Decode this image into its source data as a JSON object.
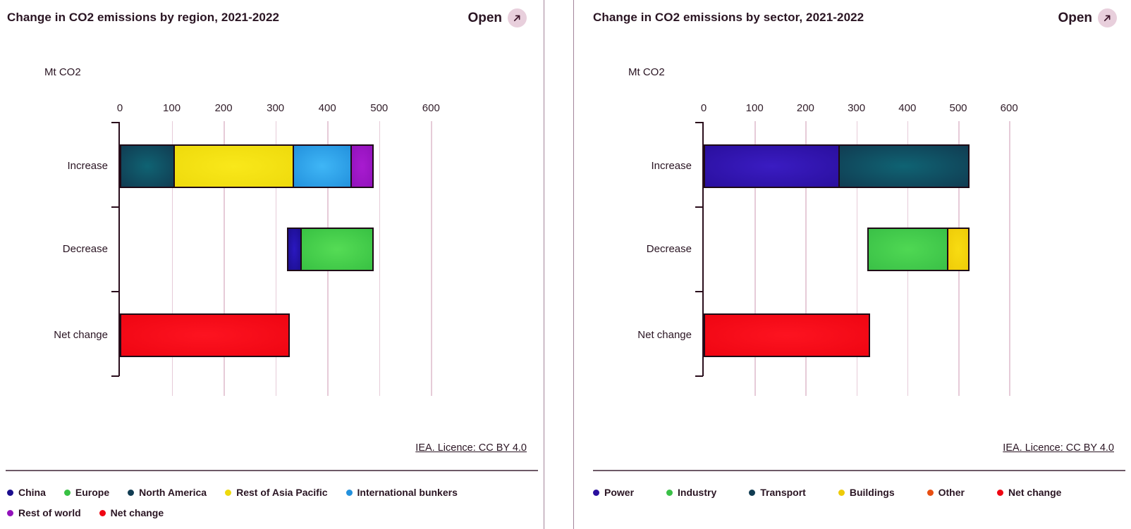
{
  "panels": [
    {
      "title": "Change in CO2 emissions by region, 2021-2022",
      "open_label": "Open",
      "unit_label": "Mt CO2",
      "licence": "IEA. Licence: CC BY 4.0"
    },
    {
      "title": "Change in CO2 emissions by sector, 2021-2022",
      "open_label": "Open",
      "unit_label": "Mt CO2",
      "licence": "IEA. Licence: CC BY 4.0"
    }
  ],
  "chart_data": [
    {
      "type": "bar",
      "orientation": "horizontal",
      "title": "Change in CO2 emissions by region, 2021-2022",
      "xlabel": "Mt CO2",
      "xlim": [
        0,
        600
      ],
      "x_ticks": [
        0,
        100,
        200,
        300,
        400,
        500,
        600
      ],
      "grid": true,
      "legend_position": "bottom",
      "categories": [
        "Increase",
        "Decrease",
        "Net change"
      ],
      "bar_offsets_mt": [
        0,
        322,
        0
      ],
      "series": [
        {
          "name": "China",
          "color": "#2a18c0",
          "color2": "#1c0e8e",
          "values": [
            0,
            23,
            0
          ]
        },
        {
          "name": "Europe",
          "color": "#55dc55",
          "color2": "#38c143",
          "values": [
            0,
            139,
            0
          ]
        },
        {
          "name": "North America",
          "color": "#0f6373",
          "color2": "#113c52",
          "values": [
            100,
            0,
            0
          ]
        },
        {
          "name": "Rest of Asia Pacific",
          "color": "#f9e81a",
          "color2": "#eeda0c",
          "values": [
            230,
            0,
            0
          ]
        },
        {
          "name": "International bunkers",
          "color": "#3fb6f6",
          "color2": "#2391dd",
          "values": [
            112,
            0,
            0
          ]
        },
        {
          "name": "Rest of world",
          "color": "#a81bd0",
          "color2": "#9212bb",
          "values": [
            42,
            0,
            0
          ]
        },
        {
          "name": "Net change",
          "color": "#fd1320",
          "color2": "#ef0512",
          "values": [
            0,
            0,
            322
          ]
        }
      ]
    },
    {
      "type": "bar",
      "orientation": "horizontal",
      "title": "Change in CO2 emissions by sector, 2021-2022",
      "xlabel": "Mt CO2",
      "xlim": [
        0,
        600
      ],
      "x_ticks": [
        0,
        100,
        200,
        300,
        400,
        500,
        600
      ],
      "grid": true,
      "legend_position": "bottom",
      "categories": [
        "Increase",
        "Decrease",
        "Net change"
      ],
      "bar_offsets_mt": [
        0,
        321,
        0
      ],
      "series": [
        {
          "name": "Power",
          "color": "#3a1cc2",
          "color2": "#2a0f9e",
          "values": [
            262,
            0,
            0
          ]
        },
        {
          "name": "Industry",
          "color": "#4fd853",
          "color2": "#3ac047",
          "values": [
            0,
            154,
            0
          ]
        },
        {
          "name": "Transport",
          "color": "#0f6373",
          "color2": "#113c52",
          "values": [
            254,
            0,
            0
          ]
        },
        {
          "name": "Buildings",
          "color": "#f8dc12",
          "color2": "#eecb08",
          "values": [
            0,
            41,
            0
          ]
        },
        {
          "name": "Other",
          "color": "#f05a17",
          "color2": "#e84f12",
          "values": [
            0,
            0,
            0
          ]
        },
        {
          "name": "Net change",
          "color": "#fd1320",
          "color2": "#ef0512",
          "values": [
            0,
            0,
            321
          ]
        }
      ]
    }
  ]
}
